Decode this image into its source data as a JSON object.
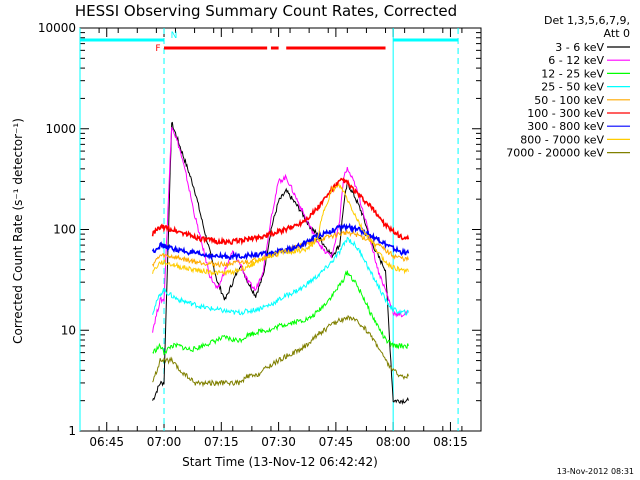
{
  "chart_data": {
    "type": "line",
    "title": "HESSI Observing Summary Count Rates, Corrected",
    "xlabel": "Start Time (13-Nov-12 06:42:42)",
    "ylabel": "Corrected Count Rate (s⁻¹ detector⁻¹)",
    "y_scale": "log",
    "ylim": [
      1,
      10000
    ],
    "xlim": [
      "06:38",
      "08:23"
    ],
    "x_ticks": [
      "06:45",
      "07:00",
      "07:15",
      "07:30",
      "07:45",
      "08:00",
      "08:15"
    ],
    "y_ticks": [
      "1",
      "10",
      "100",
      "1000",
      "10000"
    ],
    "footer": "13-Nov-2012 08:31",
    "legend": {
      "placement": "outside-right",
      "header": [
        "Det 1,3,5,6,7,9,",
        "Att 0"
      ]
    },
    "flags": [
      {
        "label": "N",
        "color": "#00ffff",
        "segments": [
          [
            "06:38",
            "07:00"
          ],
          [
            "08:00",
            "08:17"
          ]
        ]
      },
      {
        "label": "F",
        "color": "#ff0000",
        "segments": [
          [
            "07:00",
            "07:27"
          ],
          [
            "07:28",
            "07:30"
          ],
          [
            "07:32",
            "07:58"
          ]
        ]
      }
    ],
    "vlines": [
      {
        "x": "06:38",
        "style": "solid",
        "color": "#00ffff"
      },
      {
        "x": "07:00",
        "style": "dashed",
        "color": "#00ffff"
      },
      {
        "x": "08:00",
        "style": "solid",
        "color": "#00ffff"
      },
      {
        "x": "08:17",
        "style": "dashed",
        "color": "#00ffff"
      }
    ],
    "x": [
      "06:57",
      "06:59",
      "07:00",
      "07:02",
      "07:04",
      "07:06",
      "07:08",
      "07:10",
      "07:12",
      "07:14",
      "07:16",
      "07:18",
      "07:20",
      "07:22",
      "07:24",
      "07:26",
      "07:28",
      "07:30",
      "07:32",
      "07:34",
      "07:36",
      "07:38",
      "07:40",
      "07:42",
      "07:44",
      "07:46",
      "07:47",
      "07:48",
      "07:50",
      "07:52",
      "07:54",
      "07:56",
      "07:58",
      "08:00",
      "08:02",
      "08:04"
    ],
    "series": [
      {
        "name": "3 - 6 keV",
        "color": "#000000",
        "values": [
          2,
          3,
          3,
          1150,
          700,
          420,
          250,
          120,
          60,
          30,
          20,
          30,
          45,
          30,
          22,
          35,
          100,
          190,
          240,
          190,
          150,
          110,
          90,
          70,
          55,
          70,
          170,
          290,
          210,
          140,
          80,
          55,
          40,
          2,
          2,
          2
        ]
      },
      {
        "name": "6 - 12 keV",
        "color": "#ff00ff",
        "values": [
          10,
          20,
          20,
          1100,
          650,
          320,
          140,
          70,
          35,
          25,
          40,
          60,
          45,
          30,
          25,
          40,
          130,
          300,
          330,
          230,
          160,
          110,
          80,
          60,
          55,
          120,
          330,
          400,
          280,
          160,
          80,
          40,
          25,
          15,
          14,
          15
        ]
      },
      {
        "name": "12 - 25 keV",
        "color": "#00ff00",
        "values": [
          6,
          7,
          6,
          7,
          7,
          6.5,
          6.5,
          7,
          7.5,
          8,
          8.5,
          8,
          8,
          9,
          9.5,
          10,
          10,
          11,
          11.5,
          12,
          12.5,
          13,
          15,
          18,
          22,
          28,
          32,
          38,
          30,
          22,
          15,
          11,
          8,
          7,
          7,
          7
        ]
      },
      {
        "name": "25 - 50 keV",
        "color": "#00ffff",
        "values": [
          15,
          23,
          25,
          22,
          20,
          19,
          18,
          17,
          16.5,
          16,
          15.5,
          15,
          15,
          15.5,
          16,
          17,
          18,
          20,
          22,
          24,
          26,
          30,
          34,
          40,
          48,
          60,
          70,
          82,
          70,
          55,
          38,
          28,
          20,
          16,
          15,
          15
        ]
      },
      {
        "name": "50 - 100 keV",
        "color": "#ffaa00",
        "values": [
          45,
          55,
          55,
          54,
          52,
          50,
          48,
          47,
          46,
          45,
          45,
          46,
          47,
          48,
          50,
          52,
          55,
          58,
          62,
          66,
          70,
          74,
          78,
          82,
          86,
          90,
          92,
          94,
          90,
          84,
          78,
          70,
          62,
          55,
          52,
          50
        ]
      },
      {
        "name": "100 - 300 keV",
        "color": "#ff0000",
        "values": [
          90,
          105,
          105,
          100,
          95,
          90,
          85,
          80,
          78,
          76,
          75,
          76,
          78,
          80,
          83,
          86,
          90,
          95,
          100,
          108,
          118,
          135,
          160,
          200,
          250,
          300,
          310,
          290,
          240,
          200,
          170,
          140,
          110,
          95,
          85,
          80
        ]
      },
      {
        "name": "300 - 800 keV",
        "color": "#0000ff",
        "values": [
          60,
          70,
          68,
          65,
          62,
          60,
          58,
          56,
          55,
          54,
          54,
          54,
          55,
          55,
          56,
          57,
          58,
          60,
          62,
          65,
          70,
          78,
          86,
          92,
          98,
          104,
          106,
          106,
          102,
          96,
          88,
          80,
          72,
          65,
          60,
          58
        ]
      },
      {
        "name": "800 - 7000 keV",
        "color": "#ffcc00",
        "values": [
          38,
          47,
          47,
          45,
          43,
          41,
          40,
          39,
          38,
          37,
          37,
          38,
          40,
          43,
          47,
          52,
          55,
          58,
          60,
          60,
          62,
          65,
          80,
          160,
          250,
          270,
          240,
          200,
          140,
          100,
          80,
          60,
          48,
          42,
          40,
          38
        ]
      },
      {
        "name": "7000 - 20000 keV",
        "color": "#808000",
        "values": [
          3,
          5,
          5,
          5,
          4,
          3.5,
          3,
          3,
          3,
          3,
          3,
          3,
          3,
          3.5,
          3.5,
          4,
          4.5,
          5,
          5.5,
          6,
          6.5,
          7.5,
          9,
          10,
          11.5,
          12.5,
          13,
          13.5,
          12.5,
          11,
          9,
          7,
          5,
          4,
          3.5,
          3.5
        ]
      }
    ]
  }
}
